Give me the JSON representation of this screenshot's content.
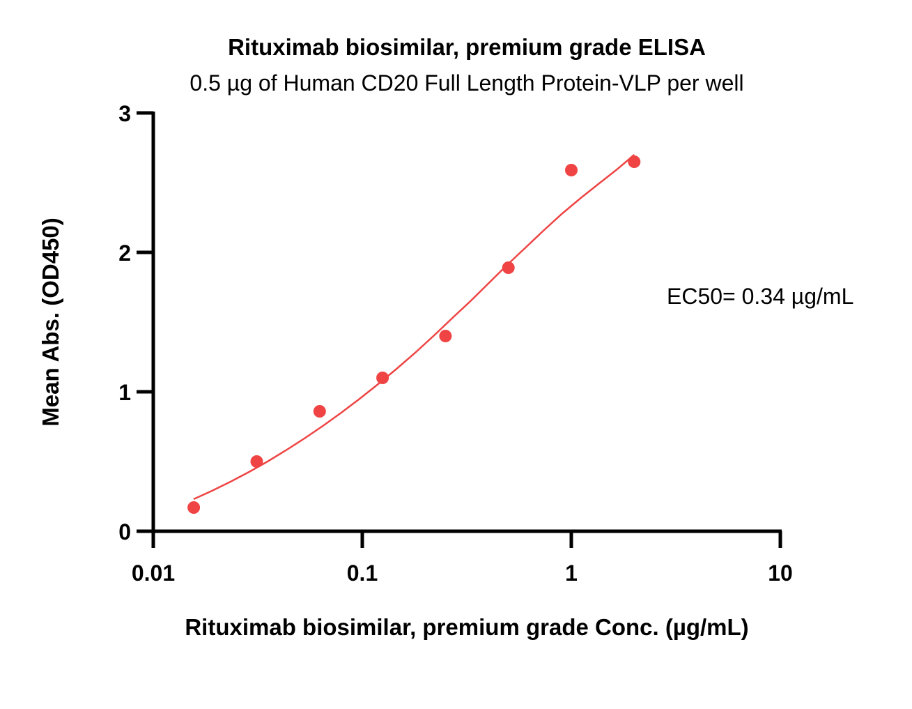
{
  "chart_data": {
    "type": "scatter",
    "title": "Rituximab biosimilar, premium grade ELISA",
    "subtitle": "0.5 µg of Human CD20 Full Length Protein-VLP per well",
    "xlabel": "Rituximab biosimilar, premium grade Conc. (µg/mL)",
    "ylabel": "Mean Abs. (OD450)",
    "xscale": "log",
    "xlim": [
      0.01,
      10
    ],
    "ylim": [
      0,
      3
    ],
    "xticks": [
      "0.01",
      "0.1",
      "1",
      "10"
    ],
    "yticks": [
      "0",
      "1",
      "2",
      "3"
    ],
    "grid": false,
    "point_color": "#f04444",
    "curve_color": "#ee4444",
    "points": {
      "x": [
        0.015625,
        0.03125,
        0.0625,
        0.125,
        0.25,
        0.5,
        1,
        2
      ],
      "y": [
        0.17,
        0.5,
        0.86,
        1.1,
        1.4,
        1.89,
        2.59,
        2.65
      ]
    },
    "fit_curve": {
      "x": [
        0.0156,
        0.0191,
        0.0234,
        0.0287,
        0.0352,
        0.0431,
        0.0528,
        0.0647,
        0.0793,
        0.0971,
        0.119,
        0.146,
        0.179,
        0.219,
        0.268,
        0.329,
        0.403,
        0.493,
        0.605,
        0.741,
        0.907,
        1.11,
        1.36,
        1.67,
        2.0
      ],
      "y": [
        0.23,
        0.29,
        0.355,
        0.425,
        0.5,
        0.58,
        0.665,
        0.755,
        0.85,
        0.95,
        1.055,
        1.165,
        1.28,
        1.4,
        1.525,
        1.65,
        1.78,
        1.91,
        2.035,
        2.16,
        2.28,
        2.39,
        2.495,
        2.6,
        2.7
      ]
    },
    "annotations": [
      "EC50= 0.34 µg/mL"
    ]
  }
}
